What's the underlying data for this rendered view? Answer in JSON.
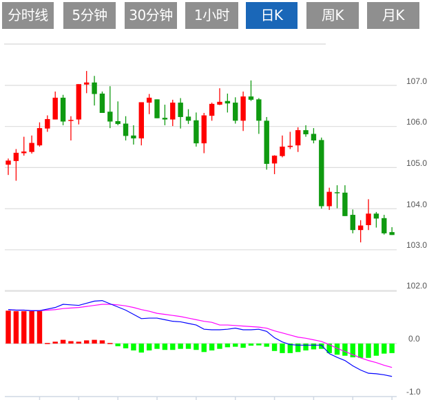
{
  "tabs": [
    {
      "label": "分时线",
      "active": false
    },
    {
      "label": "5分钟",
      "active": false
    },
    {
      "label": "30分钟",
      "active": false
    },
    {
      "label": "1小时",
      "active": false
    },
    {
      "label": "日K",
      "active": true
    },
    {
      "label": "周K",
      "active": false
    },
    {
      "label": "月K",
      "active": false
    }
  ],
  "colors": {
    "up": "#ff0000",
    "down": "#0f9a10",
    "hist_up": "#ff0000",
    "hist_down": "#00ff00",
    "dif": "#0000ff",
    "dea": "#ff00ff",
    "tab": "#8f8f8f",
    "tab_active": "#1a67b8"
  },
  "chart_data": [
    {
      "type": "candlestick",
      "title": "",
      "ylim": [
        102,
        108
      ],
      "y_ticks": [
        "107.0",
        "106.0",
        "105.0",
        "104.0",
        "103.0",
        "102.0"
      ],
      "y_tick_values": [
        107,
        106,
        105,
        104,
        103,
        102
      ],
      "grid": true,
      "ohlc": [
        [
          105.07,
          105.22,
          104.82,
          105.17
        ],
        [
          105.16,
          105.45,
          104.68,
          105.36
        ],
        [
          105.35,
          105.75,
          105.29,
          105.39
        ],
        [
          105.38,
          105.78,
          105.34,
          105.6
        ],
        [
          105.54,
          106.1,
          105.51,
          105.96
        ],
        [
          105.95,
          106.27,
          105.87,
          106.18
        ],
        [
          106.17,
          106.85,
          106.17,
          106.7
        ],
        [
          106.7,
          106.77,
          106.03,
          106.12
        ],
        [
          106.14,
          106.25,
          105.66,
          106.16
        ],
        [
          106.17,
          107.03,
          106.05,
          107.03
        ],
        [
          107.02,
          107.35,
          106.81,
          107.07
        ],
        [
          107.07,
          107.23,
          106.51,
          106.79
        ],
        [
          106.8,
          106.85,
          106.33,
          106.33
        ],
        [
          106.36,
          106.98,
          105.96,
          106.12
        ],
        [
          106.13,
          106.61,
          106.03,
          106.06
        ],
        [
          106.07,
          106.25,
          105.66,
          105.77
        ],
        [
          105.78,
          106.03,
          105.56,
          105.71
        ],
        [
          105.71,
          106.59,
          105.54,
          106.59
        ],
        [
          106.58,
          106.79,
          106.3,
          106.7
        ],
        [
          106.66,
          106.66,
          106.2,
          106.2
        ],
        [
          106.21,
          106.53,
          106.03,
          106.17
        ],
        [
          106.17,
          106.65,
          106.01,
          106.58
        ],
        [
          106.58,
          106.69,
          105.95,
          106.23
        ],
        [
          106.24,
          106.42,
          106.06,
          106.14
        ],
        [
          106.15,
          106.34,
          105.51,
          105.59
        ],
        [
          105.59,
          106.33,
          105.35,
          106.27
        ],
        [
          106.26,
          106.58,
          106.14,
          106.55
        ],
        [
          106.53,
          106.93,
          106.52,
          106.6
        ],
        [
          106.62,
          106.8,
          106.34,
          106.56
        ],
        [
          106.58,
          106.71,
          106.07,
          106.14
        ],
        [
          106.14,
          106.85,
          105.89,
          106.73
        ],
        [
          106.73,
          107.12,
          106.62,
          106.65
        ],
        [
          106.66,
          106.69,
          105.82,
          106.14
        ],
        [
          106.14,
          106.23,
          104.95,
          105.09
        ],
        [
          105.1,
          105.3,
          104.84,
          105.29
        ],
        [
          105.28,
          105.78,
          105.25,
          105.51
        ],
        [
          105.5,
          105.87,
          105.45,
          105.53
        ],
        [
          105.54,
          105.98,
          105.38,
          105.91
        ],
        [
          105.91,
          106.03,
          105.75,
          105.81
        ],
        [
          105.82,
          105.96,
          105.59,
          105.66
        ],
        [
          105.67,
          105.73,
          104.0,
          104.06
        ],
        [
          104.06,
          104.51,
          103.97,
          104.41
        ],
        [
          104.4,
          104.57,
          104.01,
          104.38
        ],
        [
          104.39,
          104.57,
          103.82,
          103.82
        ],
        [
          103.85,
          103.98,
          103.4,
          103.48
        ],
        [
          103.48,
          103.72,
          103.18,
          103.59
        ],
        [
          103.6,
          104.23,
          103.48,
          103.88
        ],
        [
          103.88,
          103.92,
          103.54,
          103.76
        ],
        [
          103.77,
          103.85,
          103.37,
          103.4
        ],
        [
          103.43,
          103.55,
          103.36,
          103.36
        ]
      ],
      "ohlc_order": [
        "open",
        "high",
        "low",
        "close"
      ]
    },
    {
      "type": "macd",
      "ylim": [
        -1.0,
        1.0
      ],
      "y_ticks": [
        "0.0",
        "-1.0"
      ],
      "y_tick_values": [
        0,
        -1
      ],
      "histogram": [
        0.62,
        0.61,
        0.61,
        0.61,
        0.61,
        0.01,
        0.035,
        0.07,
        0.045,
        0.035,
        0.06,
        0.07,
        0.06,
        0.01,
        -0.05,
        -0.09,
        -0.13,
        -0.17,
        -0.13,
        -0.1,
        -0.12,
        -0.12,
        -0.1,
        -0.1,
        -0.12,
        -0.16,
        -0.13,
        -0.1,
        -0.07,
        -0.06,
        -0.08,
        -0.04,
        -0.035,
        -0.06,
        -0.14,
        -0.18,
        -0.18,
        -0.16,
        -0.13,
        -0.11,
        -0.1,
        -0.18,
        -0.21,
        -0.23,
        -0.26,
        -0.27,
        -0.27,
        -0.23,
        -0.19,
        -0.18
      ],
      "dif": [
        0.64,
        0.63,
        0.63,
        0.62,
        0.62,
        0.65,
        0.68,
        0.74,
        0.73,
        0.72,
        0.76,
        0.8,
        0.81,
        0.75,
        0.69,
        0.63,
        0.55,
        0.47,
        0.48,
        0.48,
        0.45,
        0.42,
        0.41,
        0.38,
        0.35,
        0.27,
        0.26,
        0.26,
        0.27,
        0.29,
        0.26,
        0.26,
        0.27,
        0.23,
        0.11,
        0.03,
        -0.02,
        -0.03,
        -0.03,
        -0.03,
        -0.03,
        -0.19,
        -0.26,
        -0.32,
        -0.42,
        -0.5,
        -0.56,
        -0.57,
        -0.59,
        -0.62
      ],
      "dea": [
        0.64,
        0.63,
        0.63,
        0.62,
        0.62,
        0.63,
        0.64,
        0.66,
        0.67,
        0.68,
        0.7,
        0.72,
        0.74,
        0.74,
        0.73,
        0.71,
        0.68,
        0.64,
        0.61,
        0.57,
        0.55,
        0.53,
        0.51,
        0.48,
        0.45,
        0.42,
        0.4,
        0.35,
        0.35,
        0.34,
        0.33,
        0.32,
        0.31,
        0.29,
        0.24,
        0.2,
        0.16,
        0.12,
        0.1,
        0.07,
        0.04,
        -0.02,
        -0.09,
        -0.15,
        -0.21,
        -0.27,
        -0.32,
        -0.36,
        -0.41,
        -0.45
      ],
      "x_tick_every": 5
    }
  ]
}
